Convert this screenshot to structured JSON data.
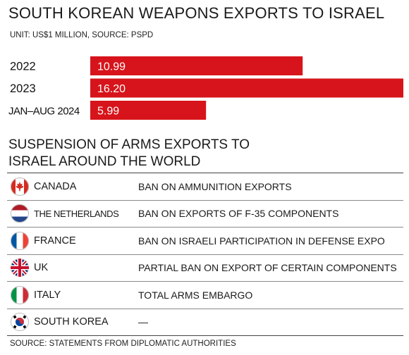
{
  "title": "SOUTH KOREAN WEAPONS EXPORTS TO ISRAEL",
  "unit_source": "UNIT: US$1 MILLION, SOURCE: PSPD",
  "chart_data": {
    "type": "bar",
    "orientation": "horizontal",
    "title": "SOUTH KOREAN WEAPONS EXPORTS TO ISRAEL",
    "categories": [
      "2022",
      "2023",
      "JAN–AUG 2024"
    ],
    "values": [
      10.99,
      16.2,
      5.99
    ],
    "value_labels": [
      "10.99",
      "16.20",
      "5.99"
    ],
    "unit": "US$1 MILLION",
    "bar_color": "#d7141b",
    "xlim": [
      0,
      16.2
    ],
    "grid": false,
    "legend": "none"
  },
  "table": {
    "subtitle": "SUSPENSION OF ARMS EXPORTS TO ISRAEL AROUND THE WORLD",
    "rows": [
      {
        "country": "CANADA",
        "measure": "BAN ON AMMUNITION EXPORTS",
        "flag": "canada-flag-icon"
      },
      {
        "country": "THE NETHERLANDS",
        "measure": "BAN ON EXPORTS OF F-35 COMPONENTS",
        "flag": "netherlands-flag-icon"
      },
      {
        "country": "FRANCE",
        "measure": "BAN ON ISRAELI PARTICIPATION IN DEFENSE EXPO",
        "flag": "france-flag-icon"
      },
      {
        "country": "UK",
        "measure": "PARTIAL BAN ON EXPORT OF CERTAIN COMPONENTS",
        "flag": "uk-flag-icon"
      },
      {
        "country": "ITALY",
        "measure": "TOTAL ARMS EMBARGO",
        "flag": "italy-flag-icon"
      },
      {
        "country": "SOUTH KOREA",
        "measure": "—",
        "flag": "south-korea-flag-icon"
      }
    ]
  },
  "source": "SOURCE: STATEMENTS FROM DIPLOMATIC AUTHORITIES",
  "colors": {
    "bar": "#d7141b",
    "text": "#1a1a1a",
    "rule": "#8a8a8a"
  }
}
